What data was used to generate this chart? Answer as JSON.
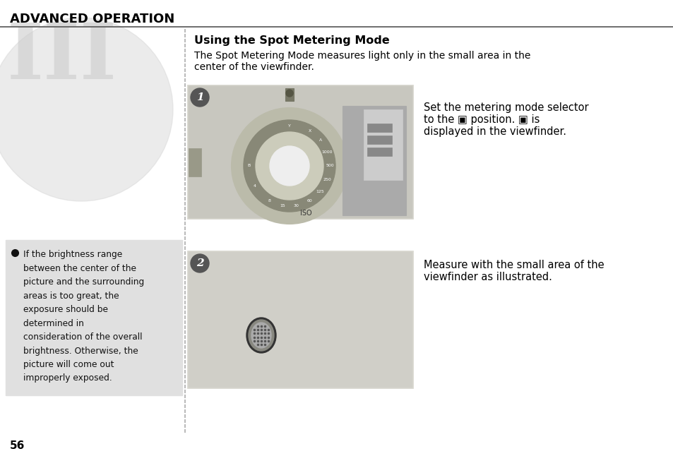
{
  "title": "ADVANCED OPERATION",
  "section_title": "Using the Spot Metering Mode",
  "section_body_1": "The Spot Metering Mode measures light only in the small area in the",
  "section_body_2": "center of the viewfinder.",
  "step1_text_1": "Set the metering mode selector",
  "step1_text_2": "to the ▣ position. ▣ is",
  "step1_text_3": "displayed in the viewfinder.",
  "step2_text_1": "Measure with the small area of the",
  "step2_text_2": "viewfinder as illustrated.",
  "note_text": "If the brightness range\nbetween the center of the\npicture and the surrounding\nareas is too great, the\nexposure should be\ndetermined in\nconsideration of the overall\nbrightness. Otherwise, the\npicture will come out\nimproperly exposed.",
  "page_number": "56",
  "bg_color": "#ffffff",
  "header_line_color": "#555555",
  "note_bg_color": "#e0e0e0",
  "img1_bg": "#d4d3cb",
  "img2_bg": "#d8d7cf",
  "dot_color": "#bbbbbb",
  "badge_fill": "#555555",
  "badge_text": "#ffffff"
}
